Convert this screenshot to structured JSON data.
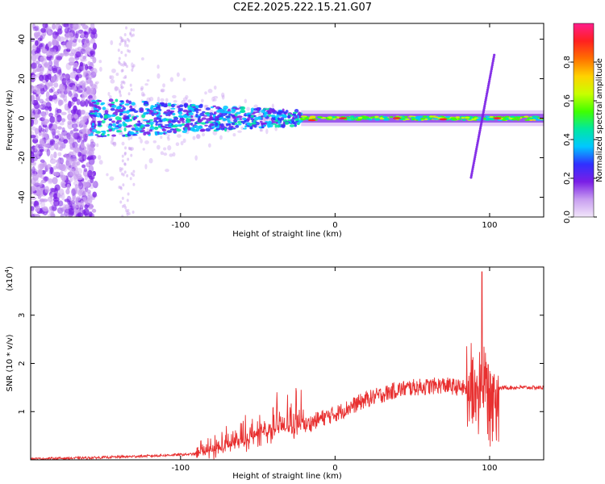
{
  "title": "C2E2.2025.222.15.21.G07",
  "chart_data": [
    {
      "type": "heatmap",
      "xlabel": "Height of straight line (km)",
      "ylabel": "Frequency (Hz)",
      "xlim": [
        -197,
        135
      ],
      "ylim": [
        -50,
        48
      ],
      "xticks": [
        -100,
        0,
        100
      ],
      "yticks": [
        -40,
        -20,
        0,
        20,
        40
      ],
      "colorbar": {
        "label": "Normalized spectral amplitude",
        "range": [
          0,
          1
        ],
        "ticks": [
          "0.0",
          "0.2",
          "0.4",
          "0.6",
          "0.8"
        ],
        "tick_values": [
          0,
          0.2,
          0.4,
          0.6,
          0.8
        ],
        "stops": [
          "#f2e6fa",
          "#c89ef0",
          "#7a1ee6",
          "#3030ff",
          "#00c8ff",
          "#00e8a0",
          "#40ff00",
          "#c8ff00",
          "#ffd200",
          "#ff7000",
          "#ff2020",
          "#ff1e8c"
        ]
      },
      "description_features": {
        "carrier_line_hz": 0,
        "chirp": {
          "x_start": 88,
          "y_start": -30,
          "x_end": 103,
          "y_end": 32
        },
        "noise_extent_x": [
          -197,
          -155
        ]
      }
    },
    {
      "type": "line",
      "xlabel": "Height of straight line (km)",
      "ylabel": "SNR (10 * v/v)",
      "multiplier": "(x10",
      "multiplier_exp": "4",
      "xlim": [
        -197,
        135
      ],
      "ylim": [
        0,
        4
      ],
      "xticks": [
        -100,
        0,
        100
      ],
      "yticks": [
        1,
        2,
        3
      ],
      "color": "#e83030",
      "trend": [
        [
          -197,
          0.02
        ],
        [
          -160,
          0.04
        ],
        [
          -120,
          0.08
        ],
        [
          -90,
          0.12
        ],
        [
          -75,
          0.2
        ],
        [
          -60,
          0.35
        ],
        [
          -50,
          0.5
        ],
        [
          -40,
          0.6
        ],
        [
          -30,
          0.65
        ],
        [
          -20,
          0.7
        ],
        [
          -10,
          0.85
        ],
        [
          0,
          0.95
        ],
        [
          10,
          1.1
        ],
        [
          20,
          1.25
        ],
        [
          30,
          1.35
        ],
        [
          40,
          1.45
        ],
        [
          50,
          1.5
        ],
        [
          60,
          1.52
        ],
        [
          70,
          1.55
        ],
        [
          80,
          1.5
        ],
        [
          90,
          1.45
        ],
        [
          100,
          1.45
        ],
        [
          110,
          1.5
        ],
        [
          120,
          1.5
        ],
        [
          135,
          1.5
        ]
      ],
      "peak": {
        "x": 95,
        "y": 3.9
      }
    }
  ]
}
